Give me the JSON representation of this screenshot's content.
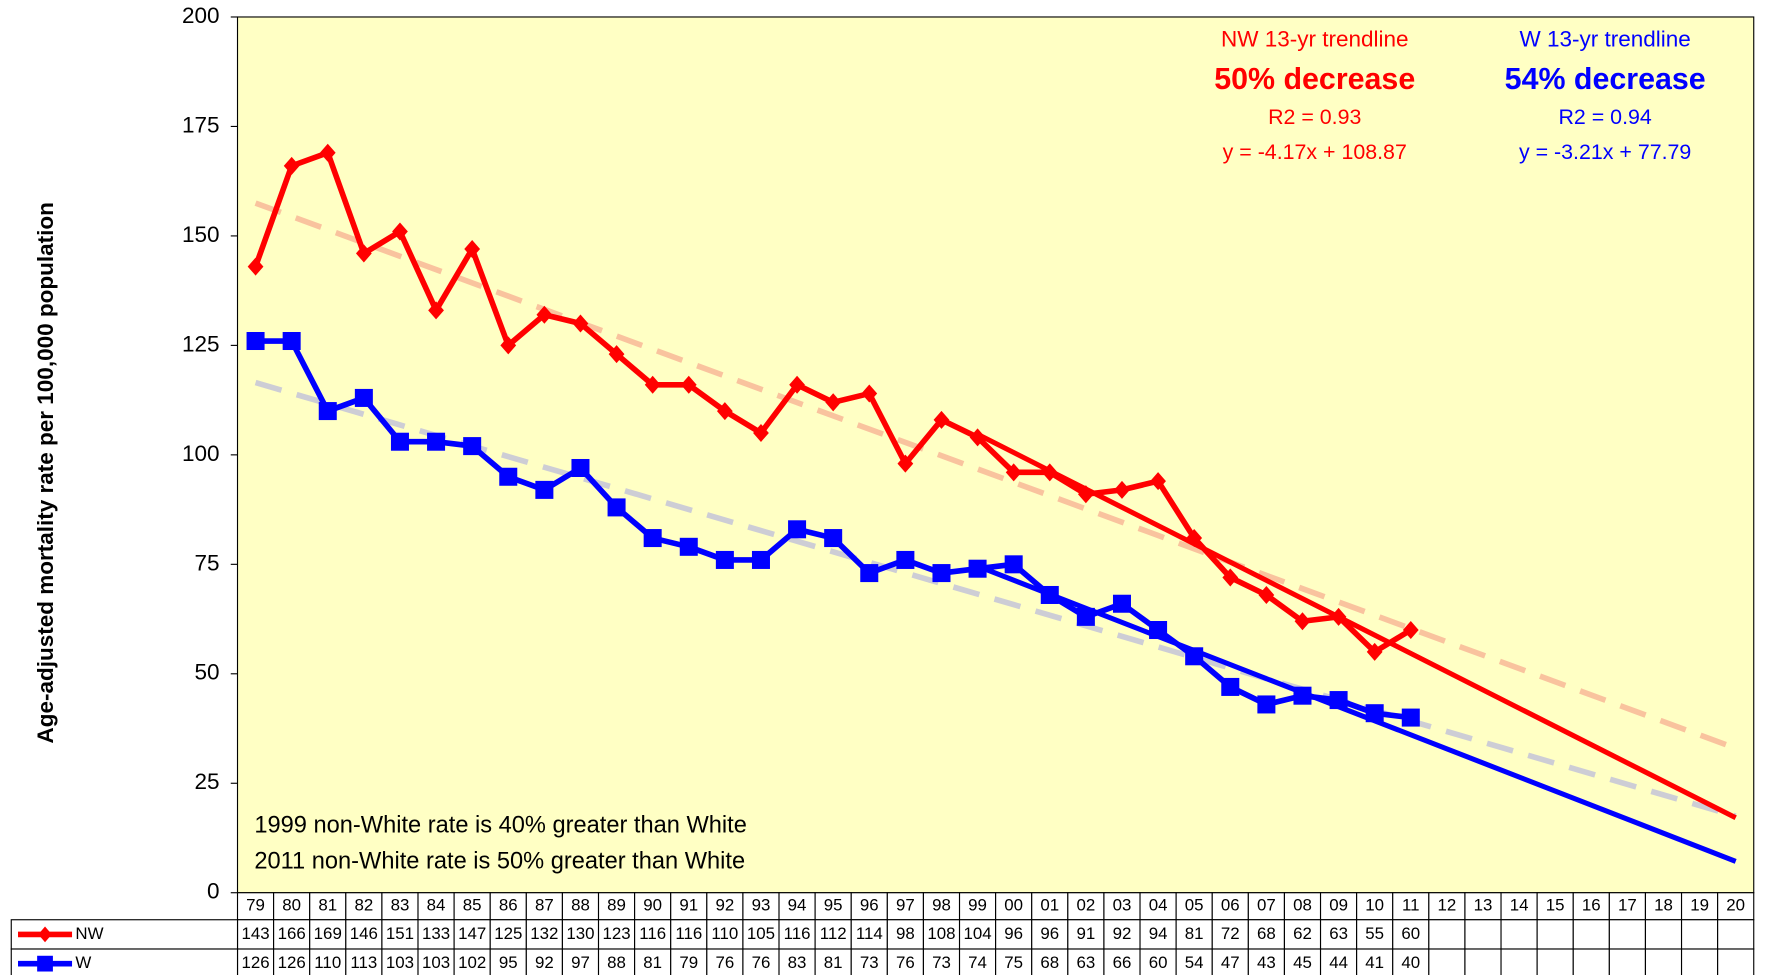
{
  "chart_data": {
    "type": "line",
    "y_axis_label": "Age-adjusted  mortality rate per 100,000  population",
    "categories": [
      "79",
      "80",
      "81",
      "82",
      "83",
      "84",
      "85",
      "86",
      "87",
      "88",
      "89",
      "90",
      "91",
      "92",
      "93",
      "94",
      "95",
      "96",
      "97",
      "98",
      "99",
      "00",
      "01",
      "02",
      "03",
      "04",
      "05",
      "06",
      "07",
      "08",
      "09",
      "10",
      "11",
      "12",
      "13",
      "14",
      "15",
      "16",
      "17",
      "18",
      "19",
      "20"
    ],
    "series": [
      {
        "name": "NW",
        "color": "#ff0000",
        "marker": "diamond",
        "values": [
          143,
          166,
          169,
          146,
          151,
          133,
          147,
          125,
          132,
          130,
          123,
          116,
          116,
          110,
          105,
          116,
          112,
          114,
          98,
          108,
          104,
          96,
          96,
          91,
          92,
          94,
          81,
          72,
          68,
          62,
          63,
          55,
          60,
          null,
          null,
          null,
          null,
          null,
          null,
          null,
          null,
          null
        ]
      },
      {
        "name": "W",
        "color": "#0000ff",
        "marker": "square",
        "values": [
          126,
          126,
          110,
          113,
          103,
          103,
          102,
          95,
          92,
          97,
          88,
          81,
          79,
          76,
          76,
          83,
          81,
          73,
          76,
          73,
          74,
          75,
          68,
          63,
          66,
          60,
          54,
          47,
          43,
          45,
          44,
          41,
          40,
          null,
          null,
          null,
          null,
          null,
          null,
          null,
          null,
          null
        ]
      }
    ],
    "trendlines": [
      {
        "style": "solid",
        "color": "#ff0000",
        "x": [
          "99",
          "20"
        ],
        "values": [
          104.7,
          17.13
        ]
      },
      {
        "style": "solid",
        "color": "#0000ff",
        "x": [
          "99",
          "20"
        ],
        "values": [
          74.58,
          7.17
        ]
      },
      {
        "style": "dashed",
        "color": "#f8b898",
        "x": [
          "79",
          "20"
        ],
        "values": [
          157.5,
          33
        ]
      },
      {
        "style": "dashed",
        "color": "#c4c4d8",
        "x": [
          "79",
          "20"
        ],
        "values": [
          116.5,
          17.5
        ]
      }
    ],
    "annotations": {
      "nw": [
        "NW 13-yr trendline",
        "50% decrease",
        "R2 = 0.93",
        "y = -4.17x + 108.87"
      ],
      "w": [
        "W 13-yr trendline",
        "54% decrease",
        "R2 = 0.94",
        "y = -3.21x + 77.79"
      ],
      "notes": [
        "1999 non-White rate is 40% greater than White",
        "2011 non-White rate is 50% greater than White"
      ]
    },
    "ylim": [
      0,
      200
    ],
    "yticks": [
      0,
      25,
      50,
      75,
      100,
      125,
      150,
      175,
      200
    ],
    "plot_background": "#ffffc4"
  }
}
